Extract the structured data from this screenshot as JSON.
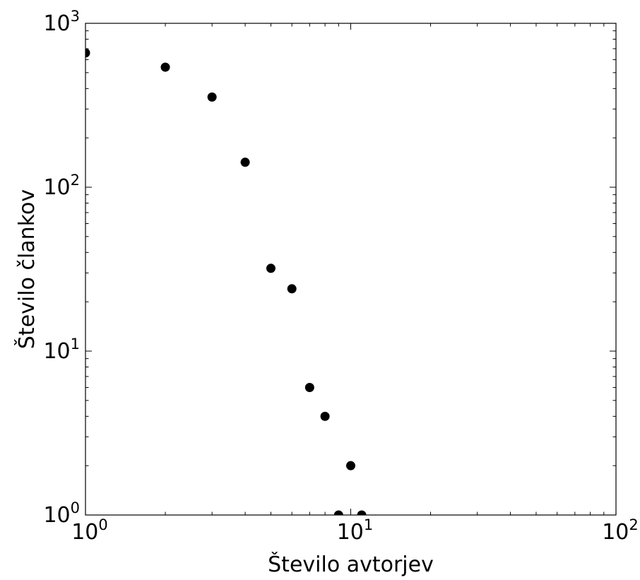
{
  "chart_data": {
    "type": "scatter",
    "title": "",
    "xlabel": "Število avtorjev",
    "ylabel": "Število člankov",
    "xscale": "log",
    "yscale": "log",
    "xlim": [
      1,
      100
    ],
    "ylim": [
      1,
      1000
    ],
    "x_ticks": [
      {
        "base": "10",
        "exp": "0",
        "value": 1
      },
      {
        "base": "10",
        "exp": "1",
        "value": 10
      },
      {
        "base": "10",
        "exp": "2",
        "value": 100
      }
    ],
    "y_ticks": [
      {
        "base": "10",
        "exp": "0",
        "value": 1
      },
      {
        "base": "10",
        "exp": "1",
        "value": 10
      },
      {
        "base": "10",
        "exp": "2",
        "value": 100
      },
      {
        "base": "10",
        "exp": "3",
        "value": 1000
      }
    ],
    "grid": false,
    "marker_color": "#000000",
    "series": [
      {
        "points": [
          {
            "x": 1,
            "y": 660
          },
          {
            "x": 2,
            "y": 540
          },
          {
            "x": 3,
            "y": 355
          },
          {
            "x": 4,
            "y": 142
          },
          {
            "x": 5,
            "y": 32
          },
          {
            "x": 6,
            "y": 24
          },
          {
            "x": 7,
            "y": 6
          },
          {
            "x": 8,
            "y": 4
          },
          {
            "x": 10,
            "y": 2
          },
          {
            "x": 9,
            "y": 1
          },
          {
            "x": 11,
            "y": 1
          }
        ]
      }
    ]
  }
}
